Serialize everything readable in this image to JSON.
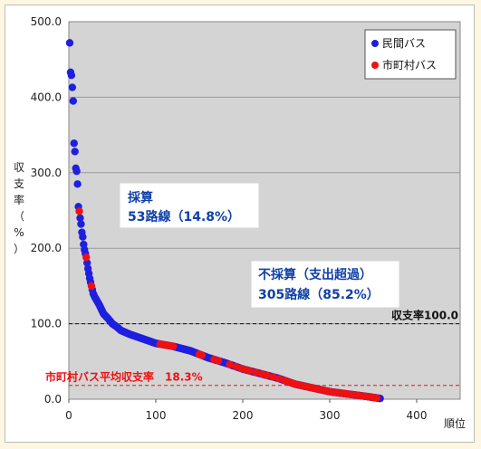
{
  "chart_data": {
    "type": "scatter",
    "xlabel": "順位",
    "ylabel_chars": [
      "収",
      "支",
      "率",
      "（",
      "%",
      "）"
    ],
    "xlim": [
      0,
      450
    ],
    "ylim": [
      0,
      500
    ],
    "x_ticks": [
      0,
      100,
      200,
      300,
      400
    ],
    "y_ticks": [
      "0.0",
      "100.0",
      "200.0",
      "300.0",
      "400.0",
      "500.0"
    ],
    "y_tick_values": [
      0,
      100,
      200,
      300,
      400,
      500
    ],
    "grid": "horizontal",
    "legend": {
      "placement": "top-right",
      "entries": [
        {
          "name": "民間バス",
          "color": "#1f1fe0"
        },
        {
          "name": "市町村バス",
          "color": "#ee1111"
        }
      ]
    },
    "anchors": [
      [
        1,
        472
      ],
      [
        2,
        433
      ],
      [
        3,
        429
      ],
      [
        4,
        413
      ],
      [
        5,
        395
      ],
      [
        6,
        339
      ],
      [
        7,
        328
      ],
      [
        8,
        306
      ],
      [
        9,
        302
      ],
      [
        10,
        285
      ],
      [
        11,
        255
      ],
      [
        12,
        249
      ],
      [
        13,
        240
      ],
      [
        14,
        232
      ],
      [
        15,
        221
      ],
      [
        16,
        215
      ],
      [
        17,
        205
      ],
      [
        18,
        198
      ],
      [
        20,
        188
      ],
      [
        22,
        173
      ],
      [
        24,
        160
      ],
      [
        26,
        150
      ],
      [
        28,
        140
      ],
      [
        30,
        135
      ],
      [
        35,
        125
      ],
      [
        40,
        113
      ],
      [
        45,
        107
      ],
      [
        50,
        100
      ],
      [
        55,
        96
      ],
      [
        60,
        91
      ],
      [
        70,
        86
      ],
      [
        80,
        82
      ],
      [
        90,
        78
      ],
      [
        100,
        74
      ],
      [
        120,
        70
      ],
      [
        140,
        64
      ],
      [
        160,
        55
      ],
      [
        180,
        48
      ],
      [
        200,
        40
      ],
      [
        220,
        34
      ],
      [
        240,
        28
      ],
      [
        260,
        20
      ],
      [
        280,
        15
      ],
      [
        300,
        10
      ],
      [
        320,
        7
      ],
      [
        340,
        4
      ],
      [
        358,
        1
      ]
    ],
    "municipal_ranks": [
      12,
      20,
      26,
      105,
      108,
      110,
      113,
      117,
      120,
      150,
      153,
      167,
      172,
      185,
      192,
      198,
      203,
      208,
      215,
      222,
      228,
      235,
      242,
      248,
      252,
      255,
      258,
      262,
      266,
      270,
      274,
      277,
      280,
      283,
      286,
      290,
      293,
      296,
      300,
      303,
      307,
      310,
      314,
      318,
      322,
      326,
      330,
      334,
      338,
      342,
      346,
      350,
      354
    ],
    "total_routes": 358,
    "reference_lines": [
      {
        "value": 100,
        "label": "収支率100.0",
        "color": "#111111"
      },
      {
        "value": 18.3,
        "label": "市町村バス平均収支率　18.3%",
        "color": "#ee1111"
      }
    ],
    "annotations": [
      {
        "line1": "採算",
        "line2": "53路線（14.8%）"
      },
      {
        "line1": "不採算（支出超過）",
        "line2": "305路線（85.2%）"
      }
    ]
  }
}
